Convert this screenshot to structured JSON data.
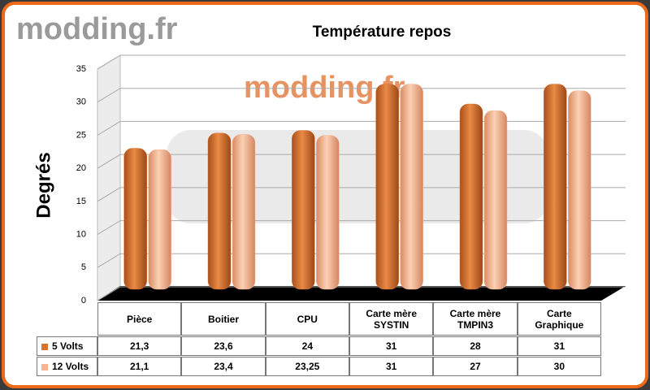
{
  "chart_data": {
    "type": "bar",
    "title": "Température repos",
    "watermark": "modding.fr",
    "y_label": "Degrés",
    "categories": [
      "Pièce",
      "Boitier",
      "CPU",
      "Carte mère SYSTIN",
      "Carte mère TMPIN3",
      "Carte Graphique"
    ],
    "series": [
      {
        "name": "5 Volts",
        "color": "#d8722f",
        "values": [
          21.3,
          23.6,
          24,
          31,
          28,
          31
        ],
        "value_labels": [
          "21,3",
          "23,6",
          "24",
          "31",
          "28",
          "31"
        ]
      },
      {
        "name": "12 Volts",
        "color": "#f7b590",
        "values": [
          21.1,
          23.4,
          23.25,
          31,
          27,
          30
        ],
        "value_labels": [
          "21,1",
          "23,4",
          "23,25",
          "31",
          "27",
          "30"
        ]
      }
    ],
    "ylim": [
      0,
      35
    ],
    "yticks": [
      0,
      5,
      10,
      15,
      20,
      25,
      30,
      35
    ],
    "grid": true
  }
}
